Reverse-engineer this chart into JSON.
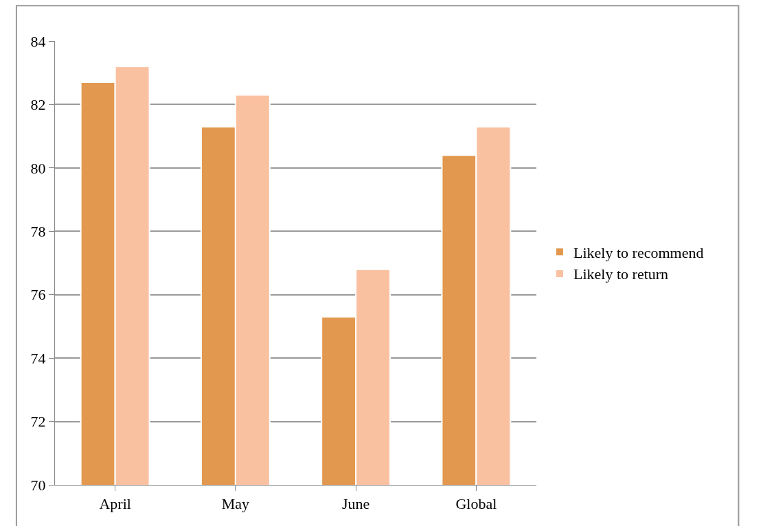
{
  "chart_data": {
    "type": "bar",
    "categories": [
      "April",
      "May",
      "June",
      "Global"
    ],
    "series": [
      {
        "name": "Likely to recommend",
        "color": "#e3984f",
        "values": [
          82.7,
          81.3,
          75.3,
          80.4
        ]
      },
      {
        "name": "Likely to return",
        "color": "#fac1a1",
        "values": [
          83.2,
          82.3,
          76.8,
          81.3
        ]
      }
    ],
    "ylim": [
      70,
      84
    ],
    "yticks": [
      70,
      72,
      74,
      76,
      78,
      80,
      82,
      84
    ],
    "grid": "y",
    "legend": "right"
  }
}
